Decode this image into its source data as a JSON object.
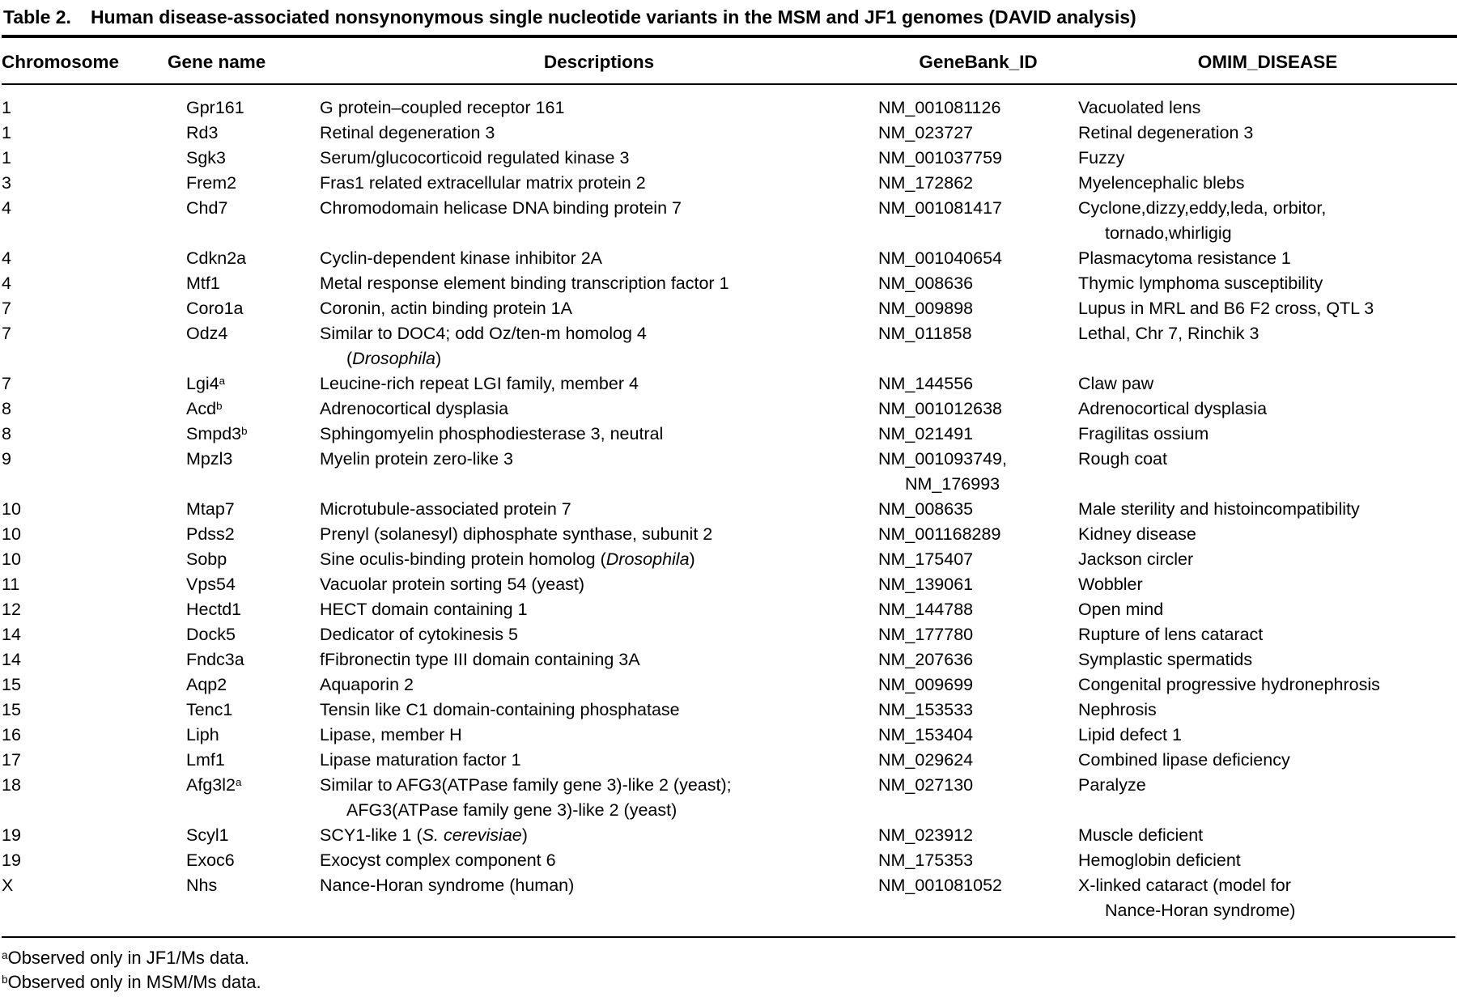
{
  "title": {
    "label": "Table 2.",
    "text": "Human disease-associated nonsynonymous single nucleotide variants in the MSM and JF1 genomes (DAVID analysis)"
  },
  "table": {
    "headers": [
      "Chromosome",
      "Gene name",
      "Descriptions",
      "GeneBank_ID",
      "OMIM_DISEASE"
    ],
    "rows": [
      {
        "chromosome": "1",
        "gene": "Gpr161",
        "desc": [
          "G protein–coupled receptor 161"
        ],
        "genebank": [
          "NM_001081126"
        ],
        "omim": [
          "Vacuolated lens"
        ]
      },
      {
        "chromosome": "1",
        "gene": "Rd3",
        "desc": [
          "Retinal degeneration 3"
        ],
        "genebank": [
          "NM_023727"
        ],
        "omim": [
          "Retinal degeneration 3"
        ]
      },
      {
        "chromosome": "1",
        "gene": "Sgk3",
        "desc": [
          "Serum/glucocorticoid regulated kinase 3"
        ],
        "genebank": [
          "NM_001037759"
        ],
        "omim": [
          "Fuzzy"
        ]
      },
      {
        "chromosome": "3",
        "gene": "Frem2",
        "desc": [
          "Fras1 related extracellular matrix protein 2"
        ],
        "genebank": [
          "NM_172862"
        ],
        "omim": [
          "Myelencephalic blebs"
        ]
      },
      {
        "chromosome": "4",
        "gene": "Chd7",
        "desc": [
          "Chromodomain helicase DNA binding protein 7"
        ],
        "genebank": [
          "NM_001081417"
        ],
        "omim": [
          "Cyclone,dizzy,eddy,leda, orbitor,",
          "tornado,whirligig"
        ]
      },
      {
        "chromosome": "4",
        "gene": "Cdkn2a",
        "desc": [
          "Cyclin-dependent kinase inhibitor 2A"
        ],
        "genebank": [
          "NM_001040654"
        ],
        "omim": [
          "Plasmacytoma resistance 1"
        ]
      },
      {
        "chromosome": "4",
        "gene": "Mtf1",
        "desc": [
          "Metal response element binding transcription factor 1"
        ],
        "genebank": [
          "NM_008636"
        ],
        "omim": [
          "Thymic lymphoma susceptibility"
        ]
      },
      {
        "chromosome": "7",
        "gene": "Coro1a",
        "desc": [
          "Coronin, actin binding protein 1A"
        ],
        "genebank": [
          "NM_009898"
        ],
        "omim": [
          "Lupus in MRL and B6 F2 cross, QTL 3"
        ]
      },
      {
        "chromosome": "7",
        "gene": "Odz4",
        "desc": [
          "Similar to DOC4; odd Oz/ten-m homolog 4",
          "(*Drosophila*)"
        ],
        "genebank": [
          "NM_011858"
        ],
        "omim": [
          "Lethal, Chr 7, Rinchik 3"
        ]
      },
      {
        "chromosome": "7",
        "gene": "Lgi4^a",
        "desc": [
          "Leucine-rich repeat LGI family, member 4"
        ],
        "genebank": [
          "NM_144556"
        ],
        "omim": [
          "Claw paw"
        ]
      },
      {
        "chromosome": "8",
        "gene": "Acd^b",
        "desc": [
          "Adrenocortical dysplasia"
        ],
        "genebank": [
          "NM_001012638"
        ],
        "omim": [
          "Adrenocortical dysplasia"
        ]
      },
      {
        "chromosome": "8",
        "gene": "Smpd3^b",
        "desc": [
          "Sphingomyelin phosphodiesterase 3, neutral"
        ],
        "genebank": [
          "NM_021491"
        ],
        "omim": [
          "Fragilitas ossium"
        ]
      },
      {
        "chromosome": "9",
        "gene": "Mpzl3",
        "desc": [
          "Myelin protein zero-like 3"
        ],
        "genebank": [
          "NM_001093749,",
          "NM_176993"
        ],
        "omim": [
          "Rough coat"
        ]
      },
      {
        "chromosome": "10",
        "gene": "Mtap7",
        "desc": [
          "Microtubule-associated protein 7"
        ],
        "genebank": [
          "NM_008635"
        ],
        "omim": [
          "Male sterility and histoincompatibility"
        ]
      },
      {
        "chromosome": "10",
        "gene": "Pdss2",
        "desc": [
          "Prenyl (solanesyl) diphosphate synthase, subunit 2"
        ],
        "genebank": [
          "NM_001168289"
        ],
        "omim": [
          "Kidney disease"
        ]
      },
      {
        "chromosome": "10",
        "gene": "Sobp",
        "desc": [
          "Sine oculis-binding protein homolog (*Drosophila*)"
        ],
        "genebank": [
          "NM_175407"
        ],
        "omim": [
          "Jackson circler"
        ]
      },
      {
        "chromosome": "11",
        "gene": "Vps54",
        "desc": [
          "Vacuolar protein sorting 54 (yeast)"
        ],
        "genebank": [
          "NM_139061"
        ],
        "omim": [
          "Wobbler"
        ]
      },
      {
        "chromosome": "12",
        "gene": "Hectd1",
        "desc": [
          "HECT domain containing 1"
        ],
        "genebank": [
          "NM_144788"
        ],
        "omim": [
          "Open mind"
        ]
      },
      {
        "chromosome": "14",
        "gene": "Dock5",
        "desc": [
          "Dedicator of cytokinesis 5"
        ],
        "genebank": [
          "NM_177780"
        ],
        "omim": [
          "Rupture of lens cataract"
        ]
      },
      {
        "chromosome": "14",
        "gene": "Fndc3a",
        "desc": [
          "fFibronectin type III domain containing 3A"
        ],
        "genebank": [
          "NM_207636"
        ],
        "omim": [
          "Symplastic spermatids"
        ]
      },
      {
        "chromosome": "15",
        "gene": "Aqp2",
        "desc": [
          "Aquaporin 2"
        ],
        "genebank": [
          "NM_009699"
        ],
        "omim": [
          "Congenital progressive hydronephrosis"
        ]
      },
      {
        "chromosome": "15",
        "gene": "Tenc1",
        "desc": [
          "Tensin like C1 domain-containing phosphatase"
        ],
        "genebank": [
          "NM_153533"
        ],
        "omim": [
          "Nephrosis"
        ]
      },
      {
        "chromosome": "16",
        "gene": "Liph",
        "desc": [
          "Lipase, member H"
        ],
        "genebank": [
          "NM_153404"
        ],
        "omim": [
          "Lipid defect 1"
        ]
      },
      {
        "chromosome": "17",
        "gene": "Lmf1",
        "desc": [
          "Lipase maturation factor 1"
        ],
        "genebank": [
          "NM_029624"
        ],
        "omim": [
          "Combined lipase deficiency"
        ]
      },
      {
        "chromosome": "18",
        "gene": "Afg3l2^a",
        "desc": [
          "Similar to AFG3(ATPase family gene 3)-like 2 (yeast);",
          "AFG3(ATPase family gene 3)-like 2 (yeast)"
        ],
        "genebank": [
          "NM_027130"
        ],
        "omim": [
          "Paralyze"
        ]
      },
      {
        "chromosome": "19",
        "gene": "Scyl1",
        "desc": [
          "SCY1-like 1 (*S. cerevisiae*)"
        ],
        "genebank": [
          "NM_023912"
        ],
        "omim": [
          "Muscle deficient"
        ]
      },
      {
        "chromosome": "19",
        "gene": "Exoc6",
        "desc": [
          "Exocyst complex component 6"
        ],
        "genebank": [
          "NM_175353"
        ],
        "omim": [
          "Hemoglobin deficient"
        ]
      },
      {
        "chromosome": "X",
        "gene": "Nhs",
        "desc": [
          "Nance-Horan syndrome (human)"
        ],
        "genebank": [
          "NM_001081052"
        ],
        "omim": [
          "X-linked cataract (model for",
          "Nance-Horan syndrome)"
        ]
      }
    ]
  },
  "footnotes": [
    {
      "sup": "a",
      "text": "Observed only in JF1/Ms data."
    },
    {
      "sup": "b",
      "text": "Observed only in MSM/Ms data."
    }
  ]
}
